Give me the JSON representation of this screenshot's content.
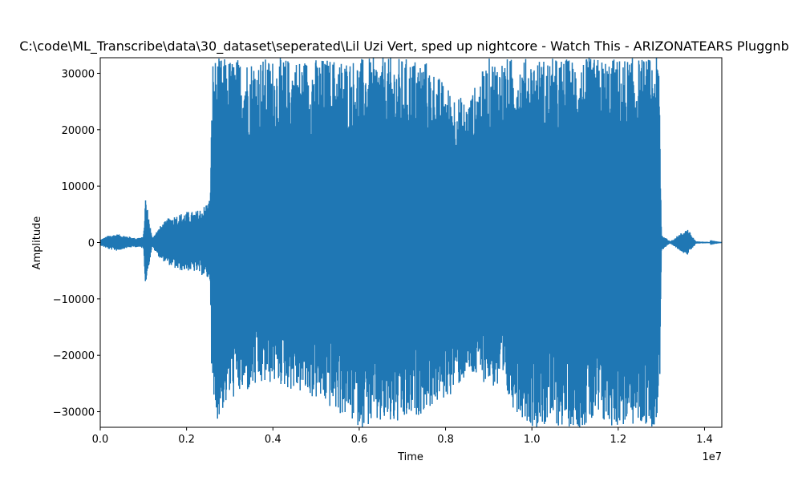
{
  "chart_data": {
    "type": "line",
    "title": "C:\\code\\ML_Transcribe\\data\\30_dataset\\seperated\\Lil Uzi Vert, sped up nightcore - Watch This - ARIZONATEARS Pluggnb",
    "xlabel": "Time",
    "ylabel": "Amplitude",
    "x_offset_label": "1e7",
    "xlim": [
      0,
      14400000
    ],
    "ylim": [
      -32768,
      32767
    ],
    "x_ticks": [
      0,
      0.2,
      0.4,
      0.6,
      0.8,
      1.0,
      1.2,
      1.4
    ],
    "x_tick_labels": [
      "0.0",
      "0.2",
      "0.4",
      "0.6",
      "0.8",
      "1.0",
      "1.2",
      "1.4"
    ],
    "y_ticks": [
      -30000,
      -20000,
      -10000,
      0,
      10000,
      20000,
      30000
    ],
    "y_tick_labels": [
      "−30000",
      "−20000",
      "−10000",
      "0",
      "10000",
      "20000",
      "30000"
    ],
    "grid": false,
    "series": [
      {
        "color": "#1f77b4",
        "envelope": [
          {
            "x": 0,
            "min": -500,
            "max": 500
          },
          {
            "x": 200000,
            "min": -1200,
            "max": 1300
          },
          {
            "x": 400000,
            "min": -1500,
            "max": 1500
          },
          {
            "x": 600000,
            "min": -1000,
            "max": 1200
          },
          {
            "x": 800000,
            "min": -800,
            "max": 800
          },
          {
            "x": 1000000,
            "min": -1000,
            "max": 1000
          },
          {
            "x": 1050000,
            "min": -7500,
            "max": 8300
          },
          {
            "x": 1200000,
            "min": -800,
            "max": 900
          },
          {
            "x": 1400000,
            "min": -3000,
            "max": 3000
          },
          {
            "x": 1600000,
            "min": -4000,
            "max": 4500
          },
          {
            "x": 1800000,
            "min": -5000,
            "max": 5000
          },
          {
            "x": 2000000,
            "min": -5000,
            "max": 5500
          },
          {
            "x": 2200000,
            "min": -5200,
            "max": 5500
          },
          {
            "x": 2400000,
            "min": -6000,
            "max": 6500
          },
          {
            "x": 2550000,
            "min": -7000,
            "max": 8000
          },
          {
            "x": 2600000,
            "min": -32768,
            "max": 32767
          },
          {
            "x": 3000000,
            "min": -28000,
            "max": 32767
          },
          {
            "x": 4000000,
            "min": -25000,
            "max": 32767
          },
          {
            "x": 5000000,
            "min": -28000,
            "max": 32767
          },
          {
            "x": 6000000,
            "min": -32768,
            "max": 32767
          },
          {
            "x": 7000000,
            "min": -32768,
            "max": 32767
          },
          {
            "x": 7500000,
            "min": -30000,
            "max": 32767
          },
          {
            "x": 8000000,
            "min": -28000,
            "max": 28000
          },
          {
            "x": 8500000,
            "min": -24000,
            "max": 25000
          },
          {
            "x": 9000000,
            "min": -25000,
            "max": 32767
          },
          {
            "x": 10000000,
            "min": -32768,
            "max": 32767
          },
          {
            "x": 11000000,
            "min": -32768,
            "max": 32767
          },
          {
            "x": 12000000,
            "min": -32768,
            "max": 32767
          },
          {
            "x": 12950000,
            "min": -32768,
            "max": 32767
          },
          {
            "x": 13000000,
            "min": -1500,
            "max": 1500
          },
          {
            "x": 13200000,
            "min": -200,
            "max": 200
          },
          {
            "x": 13600000,
            "min": -2300,
            "max": 2500
          },
          {
            "x": 13800000,
            "min": -200,
            "max": 200
          },
          {
            "x": 14400000,
            "min": 0,
            "max": 0
          }
        ]
      }
    ]
  }
}
